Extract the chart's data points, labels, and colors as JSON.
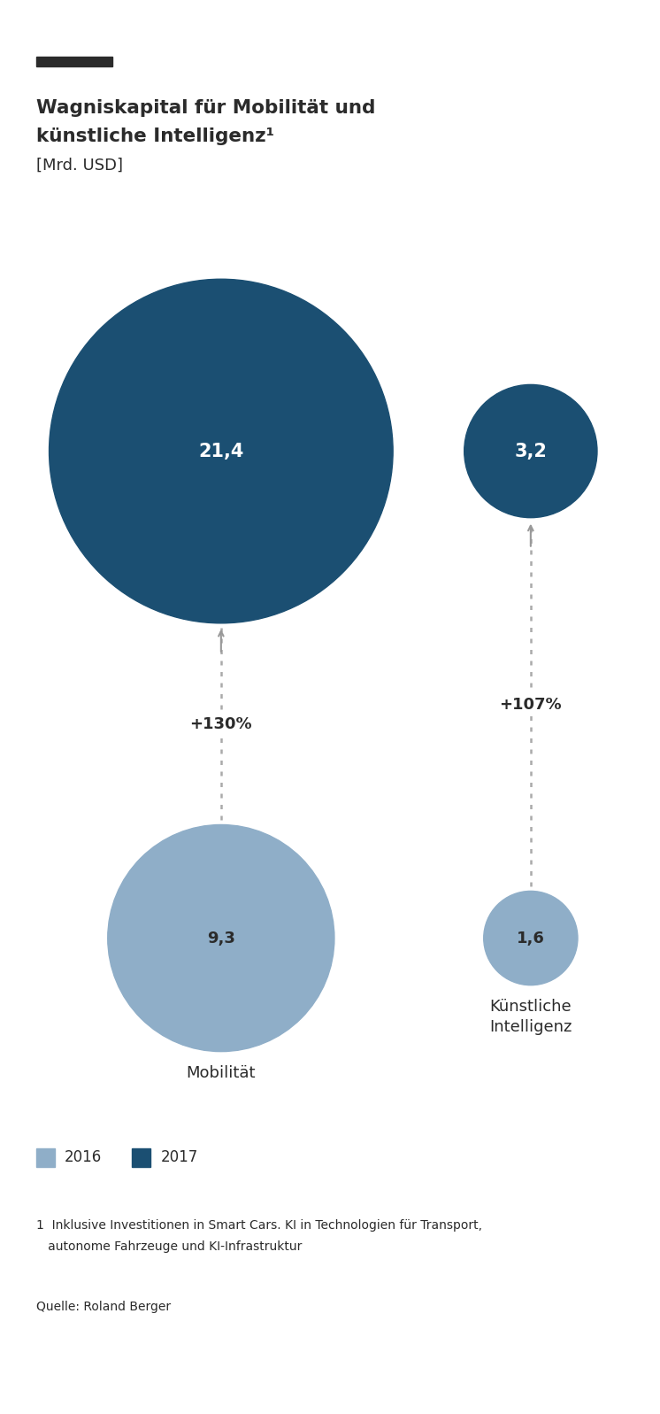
{
  "title_line1": "Wagniskapital für Mobilität und",
  "title_line2": "künstliche Intelligenz¹",
  "subtitle": "[Mrd. USD]",
  "top_bar_color": "#2b2b2b",
  "color_2017": "#1b4f72",
  "color_2016": "#8faec8",
  "circles": [
    {
      "label": "Mobilität",
      "value_2017": 21.4,
      "value_2016": 9.3,
      "pct": "+130%",
      "col": 0
    },
    {
      "label": "Künstliche\nIntelligenz",
      "value_2017": 3.2,
      "value_2016": 1.6,
      "pct": "+107%",
      "col": 1
    }
  ],
  "legend_2016": "2016",
  "legend_2017": "2017",
  "footnote_line1": "1  Inklusive Investitionen in Smart Cars. KI in Technologien für Transport,",
  "footnote_line2": "   autonome Fahrzeuge und KI-Infrastruktur",
  "source": "Quelle: Roland Berger",
  "bg_color": "#ffffff",
  "text_color": "#2b2b2b"
}
